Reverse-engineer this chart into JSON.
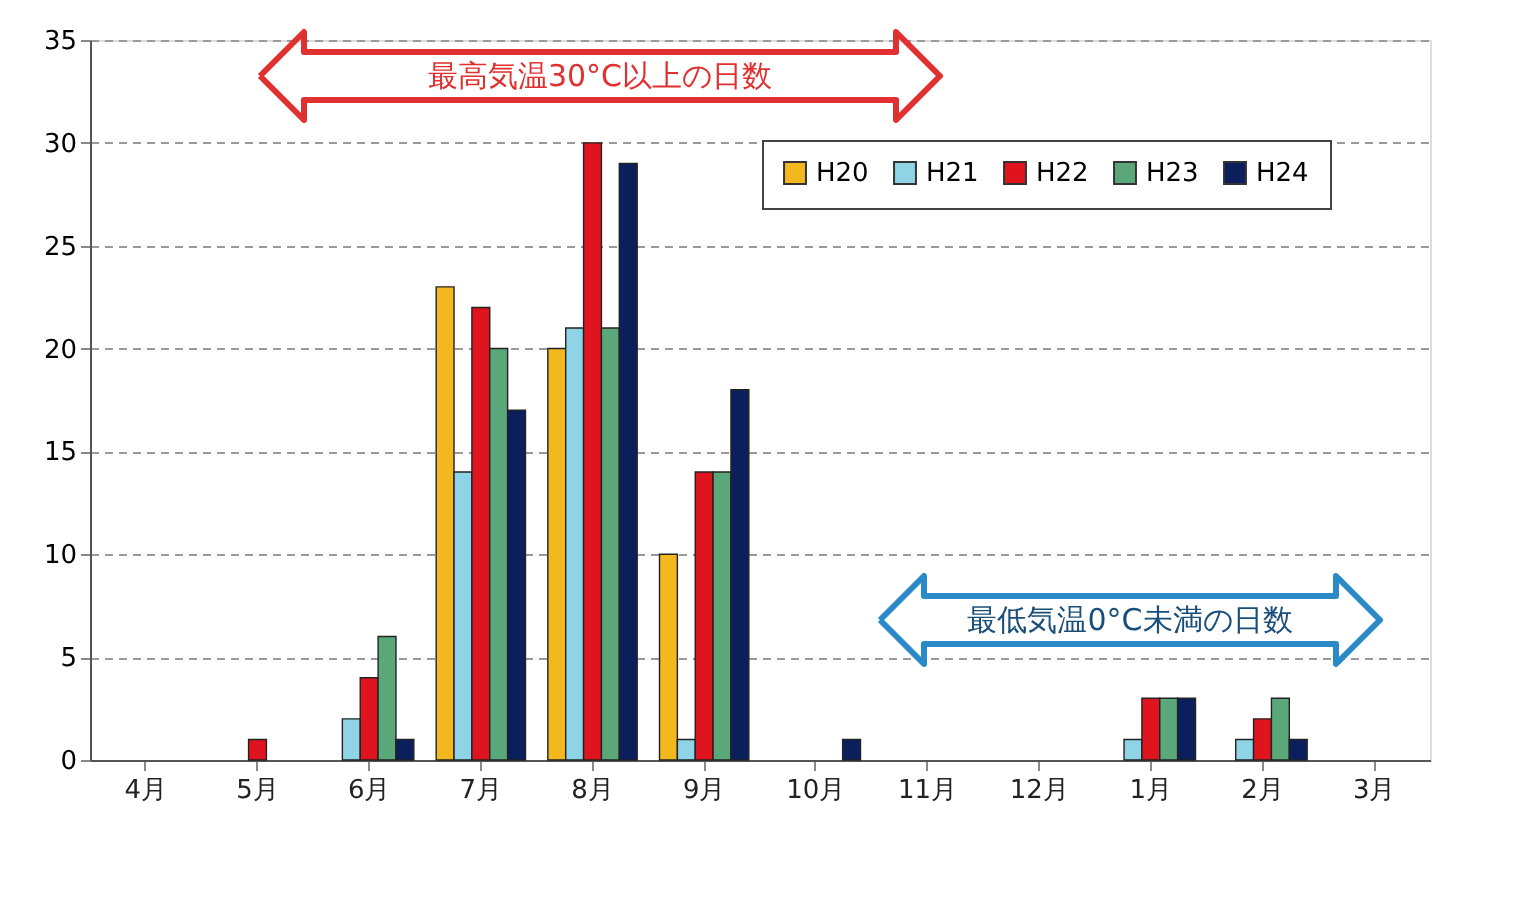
{
  "chart_data": {
    "type": "bar",
    "categories": [
      "4月",
      "5月",
      "6月",
      "7月",
      "8月",
      "9月",
      "10月",
      "11月",
      "12月",
      "1月",
      "2月",
      "3月"
    ],
    "series": [
      {
        "name": "H20",
        "color": "#f2b81e",
        "values": [
          null,
          null,
          null,
          23,
          20,
          10,
          null,
          null,
          null,
          null,
          null,
          null
        ]
      },
      {
        "name": "H21",
        "color": "#8fd3e6",
        "values": [
          null,
          null,
          2,
          14,
          21,
          1,
          null,
          null,
          null,
          1,
          1,
          null
        ]
      },
      {
        "name": "H22",
        "color": "#e0141e",
        "values": [
          null,
          1,
          4,
          22,
          30,
          14,
          null,
          null,
          null,
          3,
          2,
          null
        ]
      },
      {
        "name": "H23",
        "color": "#5aa87a",
        "values": [
          null,
          null,
          6,
          20,
          21,
          14,
          null,
          null,
          null,
          3,
          3,
          null
        ]
      },
      {
        "name": "H24",
        "color": "#0b1f5c",
        "values": [
          null,
          null,
          1,
          17,
          29,
          18,
          1,
          null,
          null,
          3,
          1,
          null
        ]
      }
    ],
    "ylim": [
      0,
      35
    ],
    "yticks": [
      0,
      5,
      10,
      15,
      20,
      25,
      30,
      35
    ],
    "grid": "y",
    "legend": "top right",
    "annotations": [
      "最高気温30°C以上の日数",
      "最低気温0°C未満の日数"
    ]
  }
}
